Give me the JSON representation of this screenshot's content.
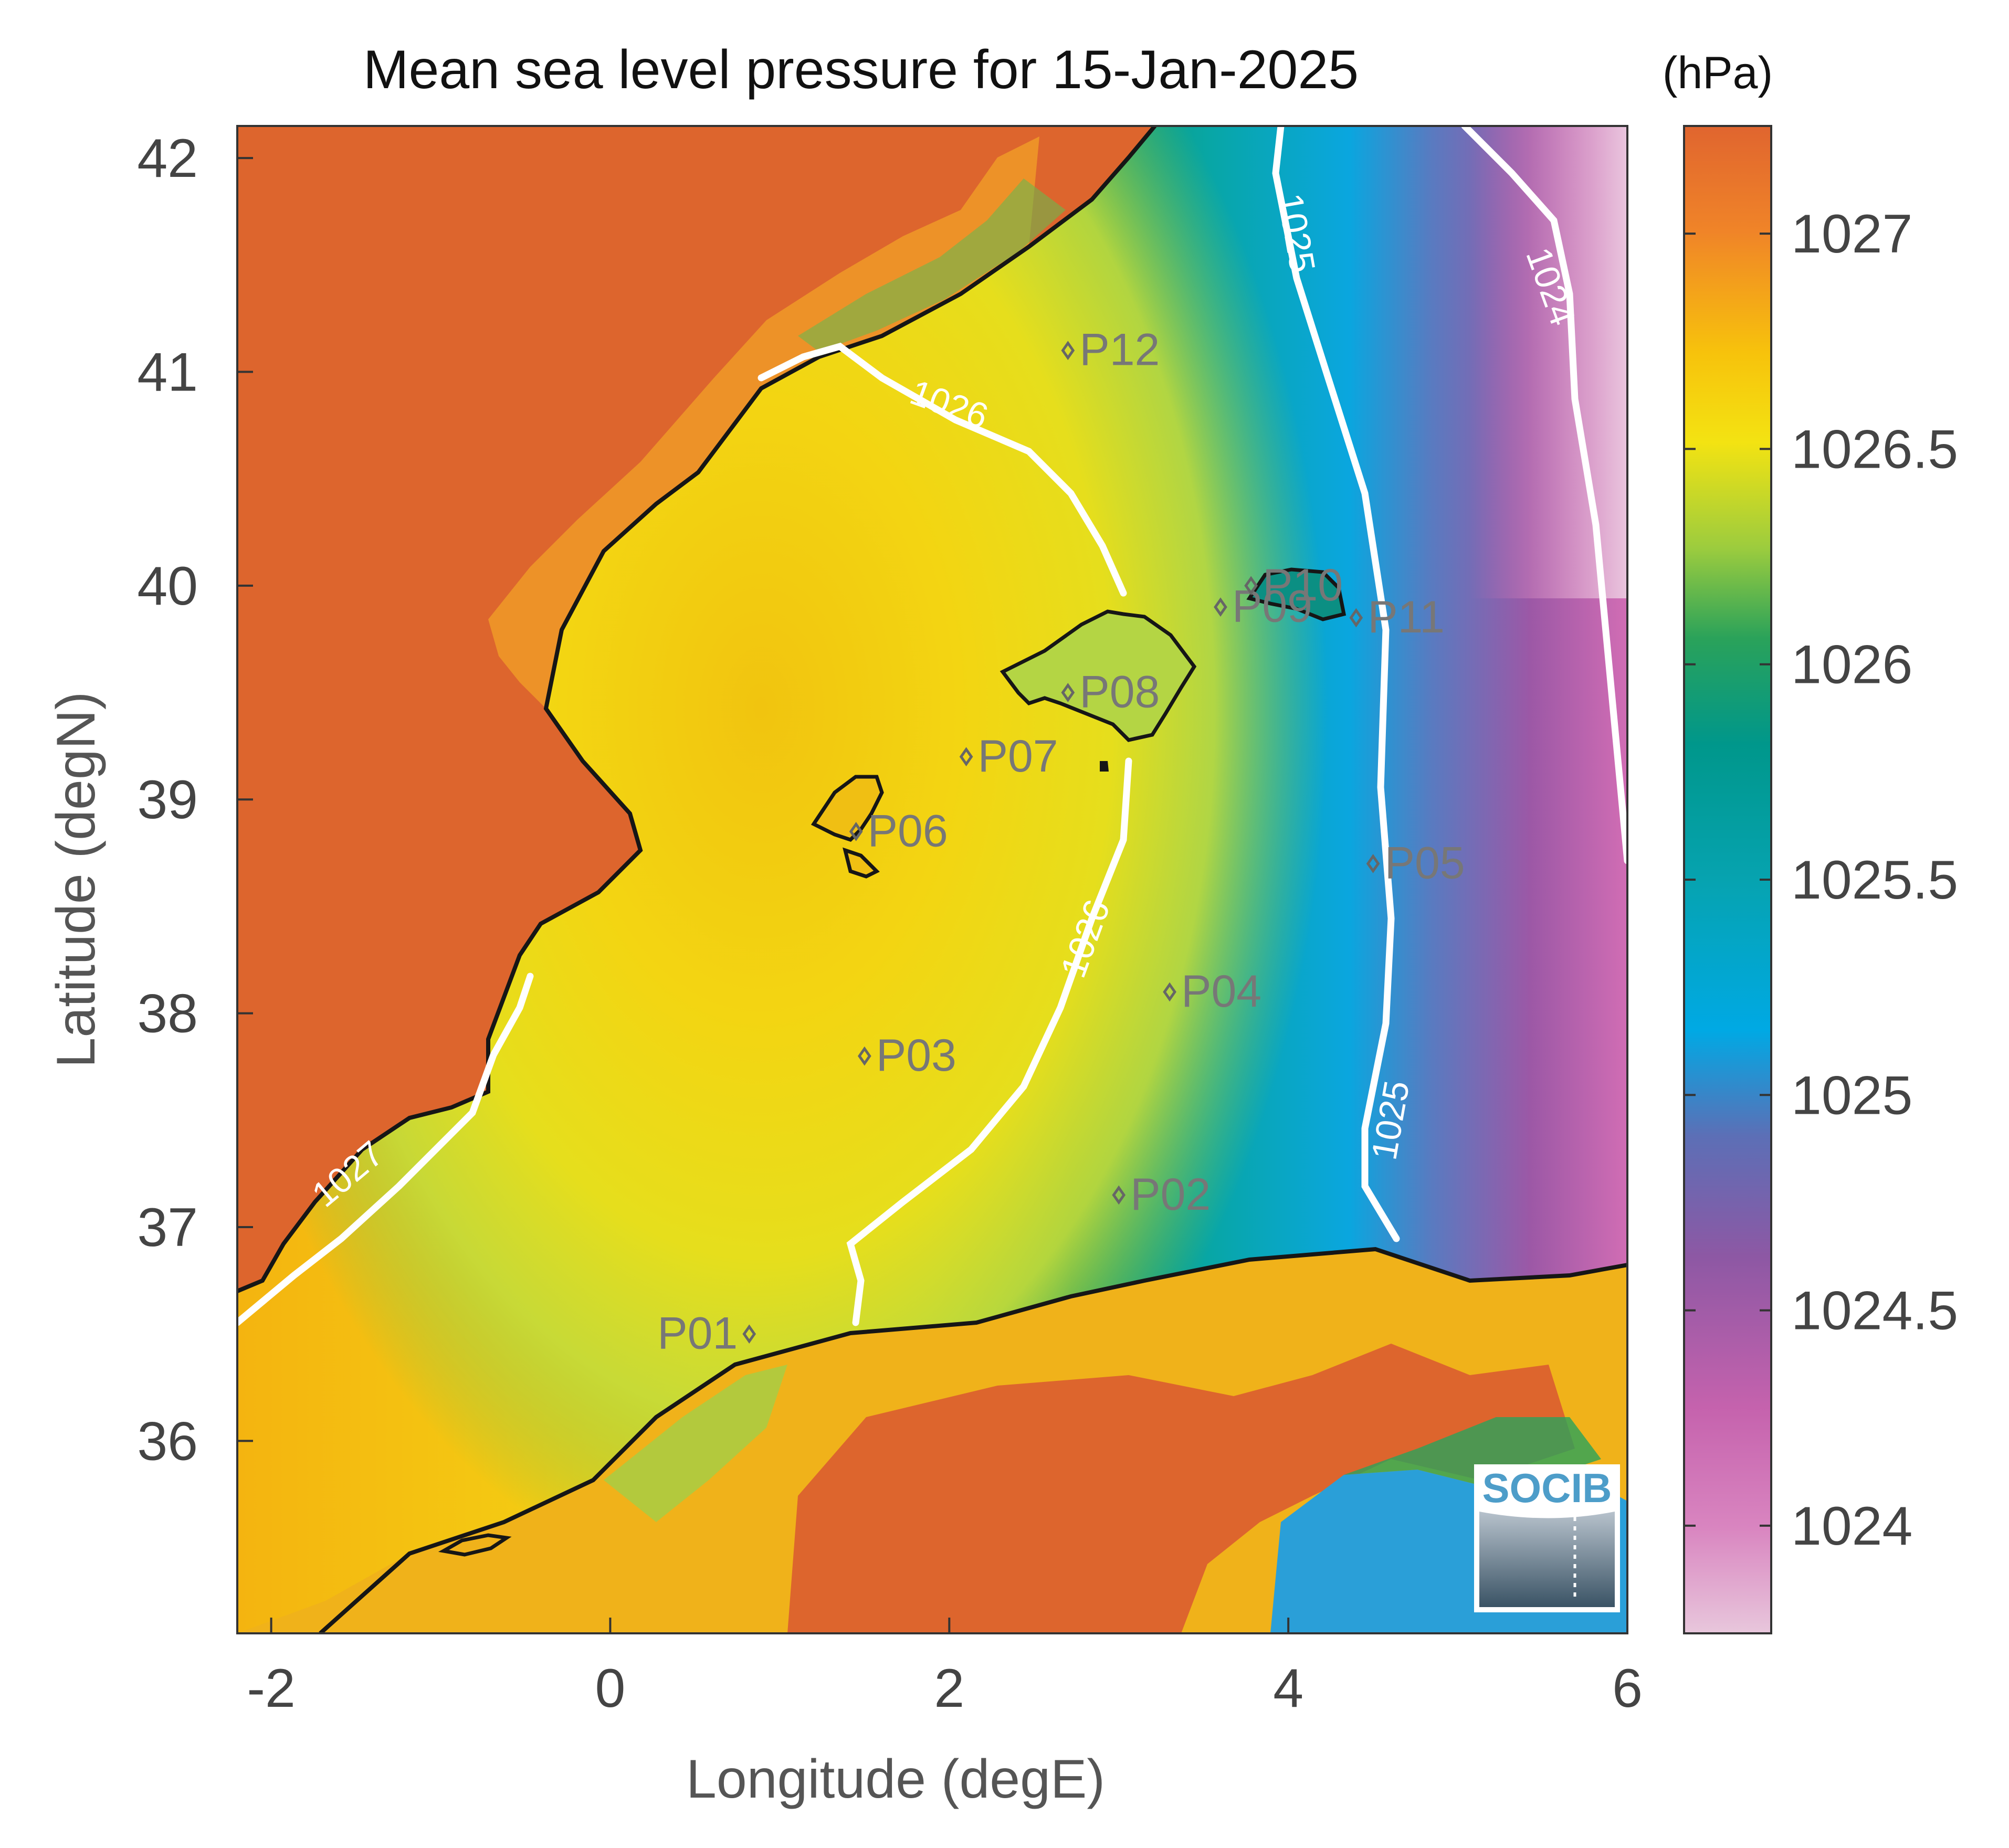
{
  "title": "Mean sea level pressure for 15-Jan-2025",
  "unit_label": "(hPa)",
  "xlabel": "Longitude (degE)",
  "ylabel": "Latitude (degN)",
  "logo_text": "SOCIB",
  "map": {
    "lon_range": [
      -2.2,
      6.0
    ],
    "lat_range": [
      35.1,
      42.15
    ],
    "x_ticks": [
      {
        "value": -2,
        "label": "-2"
      },
      {
        "value": 0,
        "label": "0"
      },
      {
        "value": 2,
        "label": "2"
      },
      {
        "value": 4,
        "label": "4"
      },
      {
        "value": 6,
        "label": "6"
      }
    ],
    "y_ticks": [
      {
        "value": 42,
        "label": "42"
      },
      {
        "value": 41,
        "label": "41"
      },
      {
        "value": 40,
        "label": "40"
      },
      {
        "value": 39,
        "label": "39"
      },
      {
        "value": 38,
        "label": "38"
      },
      {
        "value": 37,
        "label": "37"
      },
      {
        "value": 36,
        "label": "36"
      }
    ],
    "points": [
      {
        "label": "P01",
        "lon": 0.82,
        "lat": 36.5
      },
      {
        "label": "P02",
        "lon": 3.0,
        "lat": 37.15
      },
      {
        "label": "P03",
        "lon": 1.5,
        "lat": 37.8
      },
      {
        "label": "P04",
        "lon": 3.3,
        "lat": 38.1
      },
      {
        "label": "P05",
        "lon": 4.5,
        "lat": 38.7
      },
      {
        "label": "P06",
        "lon": 1.45,
        "lat": 38.85
      },
      {
        "label": "P07",
        "lon": 2.1,
        "lat": 39.2
      },
      {
        "label": "P08",
        "lon": 2.7,
        "lat": 39.5
      },
      {
        "label": "P09",
        "lon": 3.6,
        "lat": 39.9
      },
      {
        "label": "P10",
        "lon": 3.78,
        "lat": 40.0
      },
      {
        "label": "P11",
        "lon": 4.4,
        "lat": 39.85
      },
      {
        "label": "P12",
        "lon": 2.7,
        "lat": 41.1
      }
    ],
    "contour_labels": [
      {
        "text": "1027",
        "lon": -1.55,
        "lat": 37.25
      },
      {
        "text": "1026",
        "lon": 2.0,
        "lat": 40.85
      },
      {
        "text": "1026",
        "lon": 2.8,
        "lat": 38.35
      },
      {
        "text": "1025",
        "lon": 4.05,
        "lat": 41.65
      },
      {
        "text": "1025",
        "lon": 4.6,
        "lat": 37.5
      },
      {
        "text": "1024",
        "lon": 5.55,
        "lat": 41.4
      }
    ]
  },
  "colorbar": {
    "range": [
      1023.75,
      1027.25
    ],
    "ticks": [
      {
        "value": 1027,
        "label": "1027"
      },
      {
        "value": 1026.5,
        "label": "1026.5"
      },
      {
        "value": 1026,
        "label": "1026"
      },
      {
        "value": 1025.5,
        "label": "1025.5"
      },
      {
        "value": 1025,
        "label": "1025"
      },
      {
        "value": 1024.5,
        "label": "1024.5"
      },
      {
        "value": 1024,
        "label": "1024"
      }
    ],
    "colors": [
      "#e8c7dc",
      "#c562ad",
      "#8a58a3",
      "#3f86c8",
      "#00a9e4",
      "#00978b",
      "#2aa25a",
      "#5ab54a",
      "#cde033",
      "#f3e312",
      "#f7c20c",
      "#f08428",
      "#e0652f"
    ]
  }
}
